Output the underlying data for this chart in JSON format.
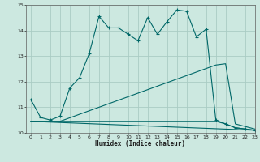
{
  "xlabel": "Humidex (Indice chaleur)",
  "bg_color": "#cce8e0",
  "grid_color": "#aaccc4",
  "line_color": "#006868",
  "xlim": [
    -0.5,
    23
  ],
  "ylim": [
    10,
    15
  ],
  "yticks": [
    10,
    11,
    12,
    13,
    14,
    15
  ],
  "xticks": [
    0,
    1,
    2,
    3,
    4,
    5,
    6,
    7,
    8,
    9,
    10,
    11,
    12,
    13,
    14,
    15,
    16,
    17,
    18,
    19,
    20,
    21,
    22,
    23
  ],
  "line1_x": [
    0,
    1,
    2,
    3,
    4,
    5,
    6,
    7,
    8,
    9,
    10,
    11,
    12,
    13,
    14,
    15,
    16,
    17,
    18,
    19,
    20,
    21,
    22,
    23
  ],
  "line1_y": [
    11.3,
    10.6,
    10.5,
    10.65,
    11.75,
    12.15,
    13.1,
    14.55,
    14.1,
    14.1,
    13.85,
    13.6,
    14.5,
    13.85,
    14.35,
    14.8,
    14.75,
    13.75,
    14.05,
    10.5,
    10.35,
    10.2,
    10.15,
    10.1
  ],
  "line2_x": [
    0,
    3,
    19,
    20,
    21,
    22,
    23
  ],
  "line2_y": [
    10.45,
    10.45,
    12.65,
    12.7,
    10.35,
    10.25,
    10.15
  ],
  "line3_x": [
    0,
    19,
    20,
    21,
    22,
    23
  ],
  "line3_y": [
    10.45,
    10.45,
    10.35,
    10.2,
    10.15,
    10.1
  ],
  "line4_x": [
    0,
    23
  ],
  "line4_y": [
    10.45,
    10.1
  ]
}
